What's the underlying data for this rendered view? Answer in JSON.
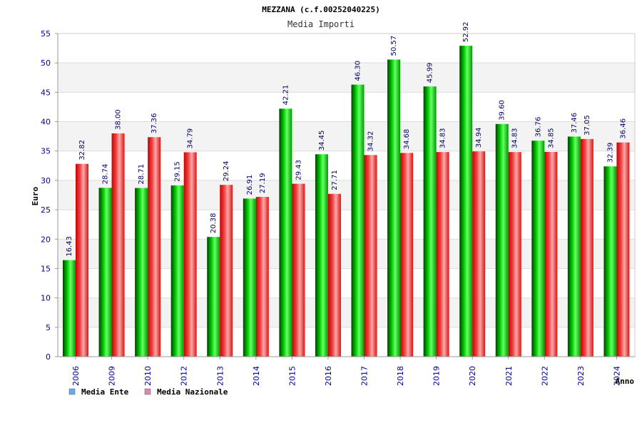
{
  "chart_data": {
    "type": "bar",
    "title": "MEZZANA (c.f.00252040225)",
    "subtitle": "Media Importi",
    "xlabel": "Anno",
    "ylabel": "Euro",
    "ylim": [
      0,
      55
    ],
    "yticks": [
      0,
      5,
      10,
      15,
      20,
      25,
      30,
      35,
      40,
      45,
      50,
      55
    ],
    "grid": true,
    "legend_position": "bottom-left",
    "categories": [
      "2006",
      "2009",
      "2010",
      "2012",
      "2013",
      "2014",
      "2015",
      "2016",
      "2017",
      "2018",
      "2019",
      "2020",
      "2021",
      "2022",
      "2023",
      "2024"
    ],
    "series": [
      {
        "name": "Media Ente",
        "color": "#00bb00",
        "legend_color": "#66aaee",
        "values": [
          16.43,
          28.74,
          28.71,
          29.15,
          20.38,
          26.91,
          42.21,
          34.45,
          46.3,
          50.57,
          45.99,
          52.92,
          39.6,
          36.76,
          37.46,
          32.39
        ],
        "labels": [
          "16.43",
          "28.74",
          "28.71",
          "29.15",
          "20.38",
          "26.91",
          "42.21",
          "34.45",
          "46.30",
          "50.57",
          "45.99",
          "52.92",
          "39.60",
          "36.76",
          "37.46",
          "32.39"
        ]
      },
      {
        "name": "Media Nazionale",
        "color": "#ee2222",
        "legend_color": "#dd88aa",
        "values": [
          32.82,
          38.0,
          37.36,
          34.79,
          29.24,
          27.19,
          29.43,
          27.71,
          34.32,
          34.68,
          34.83,
          34.94,
          34.83,
          34.85,
          37.05,
          36.46
        ],
        "labels": [
          "32.82",
          "38.00",
          "37.36",
          "34.79",
          "29.24",
          "27.19",
          "29.43",
          "27.71",
          "34.32",
          "34.68",
          "34.83",
          "34.94",
          "34.83",
          "34.85",
          "37.05",
          "36.46"
        ]
      }
    ]
  }
}
